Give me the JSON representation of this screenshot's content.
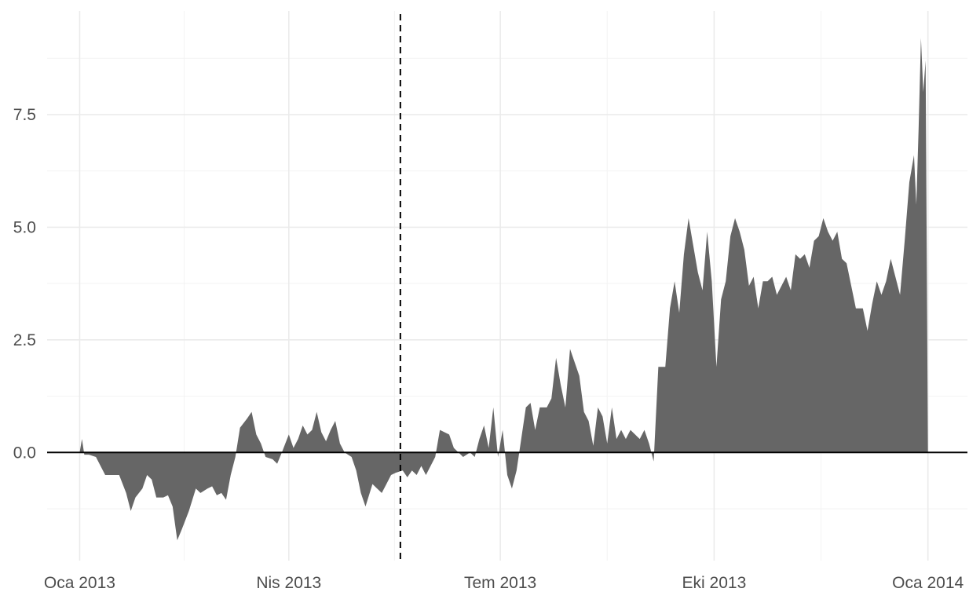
{
  "chart_data": {
    "type": "area",
    "title": "",
    "xlabel": "",
    "ylabel": "",
    "x_ticks": [
      {
        "date": "2013-01-01",
        "label": "Oca 2013"
      },
      {
        "date": "2013-04-01",
        "label": "Nis 2013"
      },
      {
        "date": "2013-07-01",
        "label": "Tem 2013"
      },
      {
        "date": "2013-10-01",
        "label": "Eki 2013"
      },
      {
        "date": "2014-01-01",
        "label": "Oca 2014"
      }
    ],
    "y_ticks": [
      {
        "value": 0.0,
        "label": "0.0"
      },
      {
        "value": 2.5,
        "label": "2.5"
      },
      {
        "value": 5.0,
        "label": "5.0"
      },
      {
        "value": 7.5,
        "label": "7.5"
      }
    ],
    "xlim": [
      "2012-12-18",
      "2014-01-18"
    ],
    "ylim": [
      -2.4,
      9.8
    ],
    "grid": true,
    "baseline": 0,
    "reference_line": {
      "date": "2013-05-19",
      "style": "dashed",
      "color": "#000000"
    },
    "fill_color": "#666666",
    "series": [
      {
        "points": [
          [
            "2013-01-01",
            0.0
          ],
          [
            "2013-01-02",
            0.3
          ],
          [
            "2013-01-03",
            -0.05
          ],
          [
            "2013-01-05",
            -0.05
          ],
          [
            "2013-01-08",
            -0.1
          ],
          [
            "2013-01-10",
            -0.3
          ],
          [
            "2013-01-12",
            -0.5
          ],
          [
            "2013-01-16",
            -0.5
          ],
          [
            "2013-01-18",
            -0.5
          ],
          [
            "2013-01-21",
            -0.9
          ],
          [
            "2013-01-23",
            -1.3
          ],
          [
            "2013-01-25",
            -1.0
          ],
          [
            "2013-01-28",
            -0.8
          ],
          [
            "2013-01-30",
            -0.5
          ],
          [
            "2013-02-01",
            -0.6
          ],
          [
            "2013-02-03",
            -1.0
          ],
          [
            "2013-02-06",
            -1.0
          ],
          [
            "2013-02-08",
            -0.95
          ],
          [
            "2013-02-10",
            -1.2
          ],
          [
            "2013-02-12",
            -1.95
          ],
          [
            "2013-02-14",
            -1.7
          ],
          [
            "2013-02-17",
            -1.3
          ],
          [
            "2013-02-20",
            -0.8
          ],
          [
            "2013-02-22",
            -0.9
          ],
          [
            "2013-02-25",
            -0.8
          ],
          [
            "2013-02-27",
            -0.75
          ],
          [
            "2013-03-01",
            -0.95
          ],
          [
            "2013-03-03",
            -0.9
          ],
          [
            "2013-03-05",
            -1.05
          ],
          [
            "2013-03-07",
            -0.5
          ],
          [
            "2013-03-09",
            -0.1
          ],
          [
            "2013-03-11",
            0.55
          ],
          [
            "2013-03-14",
            0.75
          ],
          [
            "2013-03-16",
            0.9
          ],
          [
            "2013-03-18",
            0.4
          ],
          [
            "2013-03-20",
            0.2
          ],
          [
            "2013-03-22",
            -0.1
          ],
          [
            "2013-03-25",
            -0.15
          ],
          [
            "2013-03-27",
            -0.25
          ],
          [
            "2013-03-29",
            0.0
          ],
          [
            "2013-04-01",
            0.4
          ],
          [
            "2013-04-03",
            0.1
          ],
          [
            "2013-04-05",
            0.3
          ],
          [
            "2013-04-07",
            0.6
          ],
          [
            "2013-04-09",
            0.4
          ],
          [
            "2013-04-11",
            0.5
          ],
          [
            "2013-04-13",
            0.9
          ],
          [
            "2013-04-15",
            0.45
          ],
          [
            "2013-04-17",
            0.25
          ],
          [
            "2013-04-19",
            0.5
          ],
          [
            "2013-04-21",
            0.7
          ],
          [
            "2013-04-23",
            0.2
          ],
          [
            "2013-04-25",
            0.0
          ],
          [
            "2013-04-28",
            -0.1
          ],
          [
            "2013-04-30",
            -0.4
          ],
          [
            "2013-05-02",
            -0.9
          ],
          [
            "2013-05-04",
            -1.2
          ],
          [
            "2013-05-07",
            -0.7
          ],
          [
            "2013-05-09",
            -0.8
          ],
          [
            "2013-05-11",
            -0.9
          ],
          [
            "2013-05-13",
            -0.7
          ],
          [
            "2013-05-15",
            -0.5
          ],
          [
            "2013-05-17",
            -0.45
          ],
          [
            "2013-05-20",
            -0.4
          ],
          [
            "2013-05-22",
            -0.55
          ],
          [
            "2013-05-24",
            -0.4
          ],
          [
            "2013-05-26",
            -0.5
          ],
          [
            "2013-05-28",
            -0.3
          ],
          [
            "2013-05-30",
            -0.5
          ],
          [
            "2013-06-01",
            -0.3
          ],
          [
            "2013-06-03",
            -0.1
          ],
          [
            "2013-06-05",
            0.5
          ],
          [
            "2013-06-07",
            0.45
          ],
          [
            "2013-06-09",
            0.4
          ],
          [
            "2013-06-11",
            0.1
          ],
          [
            "2013-06-13",
            0.0
          ],
          [
            "2013-06-15",
            -0.1
          ],
          [
            "2013-06-18",
            0.0
          ],
          [
            "2013-06-20",
            -0.1
          ],
          [
            "2013-06-22",
            0.3
          ],
          [
            "2013-06-24",
            0.6
          ],
          [
            "2013-06-26",
            0.1
          ],
          [
            "2013-06-28",
            1.0
          ],
          [
            "2013-06-30",
            -0.1
          ],
          [
            "2013-07-02",
            0.5
          ],
          [
            "2013-07-04",
            -0.5
          ],
          [
            "2013-07-06",
            -0.8
          ],
          [
            "2013-07-08",
            -0.4
          ],
          [
            "2013-07-10",
            0.3
          ],
          [
            "2013-07-12",
            1.0
          ],
          [
            "2013-07-14",
            1.1
          ],
          [
            "2013-07-16",
            0.5
          ],
          [
            "2013-07-18",
            1.0
          ],
          [
            "2013-07-21",
            1.0
          ],
          [
            "2013-07-23",
            1.2
          ],
          [
            "2013-07-25",
            2.1
          ],
          [
            "2013-07-27",
            1.5
          ],
          [
            "2013-07-29",
            1.0
          ],
          [
            "2013-07-31",
            2.3
          ],
          [
            "2013-08-02",
            2.0
          ],
          [
            "2013-08-04",
            1.7
          ],
          [
            "2013-08-06",
            0.9
          ],
          [
            "2013-08-08",
            0.7
          ],
          [
            "2013-08-10",
            0.15
          ],
          [
            "2013-08-12",
            1.0
          ],
          [
            "2013-08-14",
            0.8
          ],
          [
            "2013-08-16",
            0.2
          ],
          [
            "2013-08-18",
            1.0
          ],
          [
            "2013-08-20",
            0.3
          ],
          [
            "2013-08-22",
            0.5
          ],
          [
            "2013-08-24",
            0.3
          ],
          [
            "2013-08-26",
            0.5
          ],
          [
            "2013-08-28",
            0.4
          ],
          [
            "2013-08-30",
            0.3
          ],
          [
            "2013-09-01",
            0.5
          ],
          [
            "2013-09-03",
            0.2
          ],
          [
            "2013-09-05",
            -0.2
          ],
          [
            "2013-09-07",
            1.9
          ],
          [
            "2013-09-10",
            1.9
          ],
          [
            "2013-09-12",
            3.2
          ],
          [
            "2013-09-14",
            3.8
          ],
          [
            "2013-09-16",
            3.1
          ],
          [
            "2013-09-18",
            4.4
          ],
          [
            "2013-09-20",
            5.2
          ],
          [
            "2013-09-22",
            4.6
          ],
          [
            "2013-09-24",
            4.0
          ],
          [
            "2013-09-26",
            3.6
          ],
          [
            "2013-09-28",
            4.9
          ],
          [
            "2013-09-30",
            3.8
          ],
          [
            "2013-10-02",
            1.9
          ],
          [
            "2013-10-04",
            3.4
          ],
          [
            "2013-10-06",
            3.8
          ],
          [
            "2013-10-08",
            4.8
          ],
          [
            "2013-10-10",
            5.2
          ],
          [
            "2013-10-12",
            4.9
          ],
          [
            "2013-10-14",
            4.5
          ],
          [
            "2013-10-16",
            3.7
          ],
          [
            "2013-10-18",
            3.9
          ],
          [
            "2013-10-20",
            3.2
          ],
          [
            "2013-10-22",
            3.8
          ],
          [
            "2013-10-24",
            3.8
          ],
          [
            "2013-10-26",
            3.9
          ],
          [
            "2013-10-28",
            3.5
          ],
          [
            "2013-10-30",
            3.7
          ],
          [
            "2013-11-01",
            3.9
          ],
          [
            "2013-11-03",
            3.6
          ],
          [
            "2013-11-05",
            4.4
          ],
          [
            "2013-11-07",
            4.3
          ],
          [
            "2013-11-09",
            4.4
          ],
          [
            "2013-11-11",
            4.1
          ],
          [
            "2013-11-13",
            4.7
          ],
          [
            "2013-11-15",
            4.8
          ],
          [
            "2013-11-17",
            5.2
          ],
          [
            "2013-11-19",
            4.9
          ],
          [
            "2013-11-21",
            4.7
          ],
          [
            "2013-11-23",
            4.9
          ],
          [
            "2013-11-25",
            4.3
          ],
          [
            "2013-11-27",
            4.2
          ],
          [
            "2013-11-29",
            3.7
          ],
          [
            "2013-12-01",
            3.2
          ],
          [
            "2013-12-04",
            3.2
          ],
          [
            "2013-12-06",
            2.7
          ],
          [
            "2013-12-08",
            3.3
          ],
          [
            "2013-12-10",
            3.8
          ],
          [
            "2013-12-12",
            3.5
          ],
          [
            "2013-12-14",
            3.8
          ],
          [
            "2013-12-16",
            4.3
          ],
          [
            "2013-12-18",
            3.9
          ],
          [
            "2013-12-20",
            3.5
          ],
          [
            "2013-12-22",
            4.7
          ],
          [
            "2013-12-24",
            6.0
          ],
          [
            "2013-12-26",
            6.6
          ],
          [
            "2013-12-27",
            5.5
          ],
          [
            "2013-12-28",
            7.2
          ],
          [
            "2013-12-29",
            9.2
          ],
          [
            "2013-12-30",
            8.0
          ],
          [
            "2013-12-31",
            8.7
          ],
          [
            "2014-01-01",
            0.0
          ]
        ]
      }
    ]
  }
}
